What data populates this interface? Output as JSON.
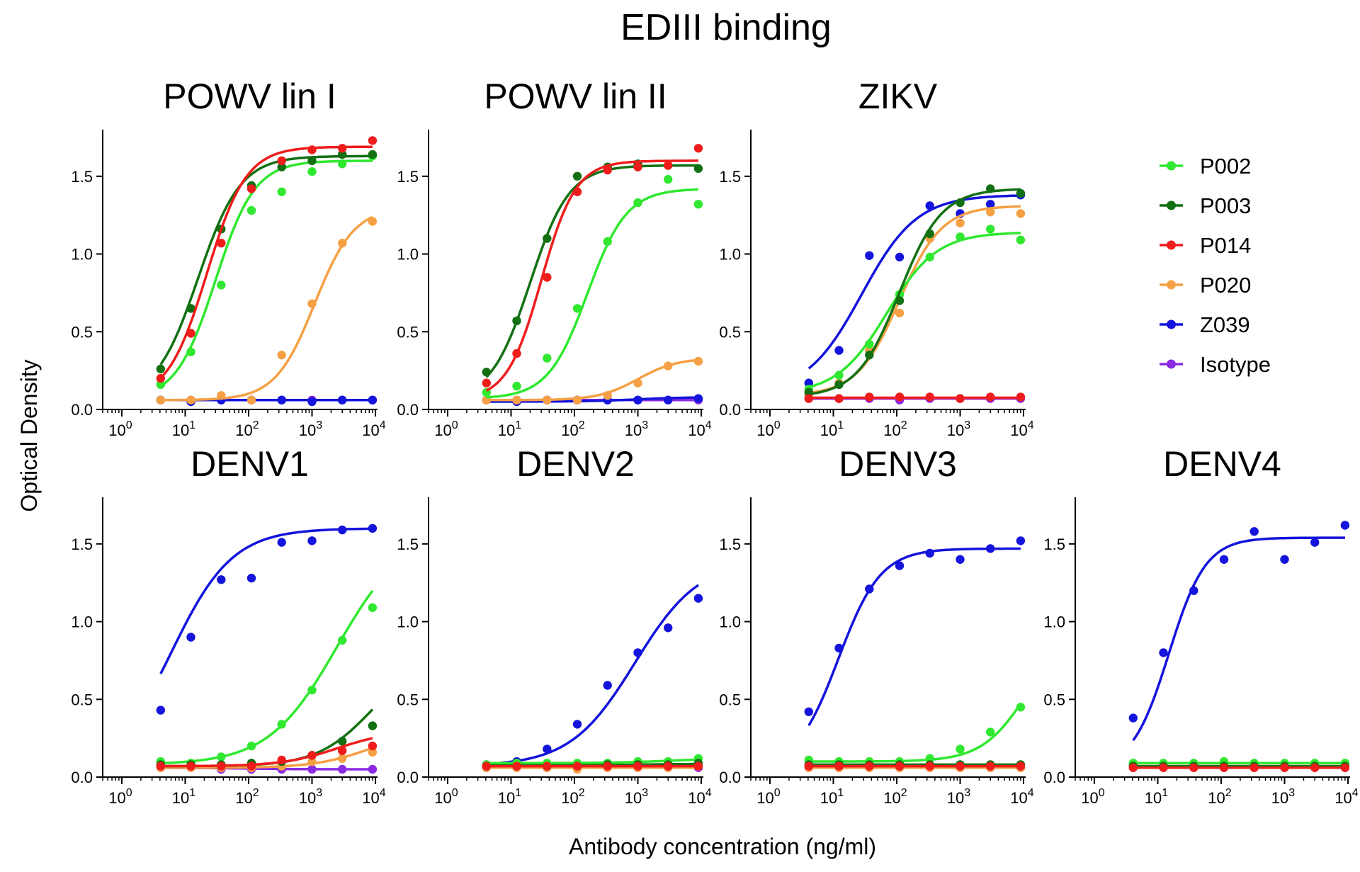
{
  "figure": {
    "title": "EDIII binding",
    "xlabel": "Antibody concentration (ng/ml)",
    "ylabel": "Optical Density"
  },
  "chart_data": {
    "type": "scatter",
    "title": "EDIII binding",
    "xlabel": "Antibody concentration (ng/ml)",
    "ylabel": "Optical Density",
    "x_scale": "log10",
    "xlim": [
      0.5,
      10000
    ],
    "ylim": [
      0,
      1.8
    ],
    "x_ticks": [
      {
        "base": "10",
        "exp": "0"
      },
      {
        "base": "10",
        "exp": "1"
      },
      {
        "base": "10",
        "exp": "2"
      },
      {
        "base": "10",
        "exp": "3"
      },
      {
        "base": "10",
        "exp": "4"
      }
    ],
    "y_ticks": [
      {
        "value": 0,
        "label": "0.0"
      },
      {
        "value": 0.5,
        "label": "0.5"
      },
      {
        "value": 1.0,
        "label": "1.0"
      },
      {
        "value": 1.5,
        "label": "1.5"
      }
    ],
    "x": [
      4.1,
      12.3,
      37,
      111,
      333,
      1000,
      3000,
      9000
    ],
    "series_info": [
      {
        "name": "P002",
        "color": "#2fe82f"
      },
      {
        "name": "P003",
        "color": "#127012"
      },
      {
        "name": "P014",
        "color": "#ef1c1c"
      },
      {
        "name": "P020",
        "color": "#f5a044"
      },
      {
        "name": "Z039",
        "color": "#1414dc"
      },
      {
        "name": "Isotype",
        "color": "#8a2be2"
      }
    ],
    "panels": [
      {
        "name": "POWV lin I",
        "series": [
          {
            "name": "Isotype",
            "values": [
              0.06,
              0.06,
              0.06,
              0.06,
              0.06,
              0.06,
              0.06,
              0.06
            ],
            "fit": {
              "bottom": 0.06,
              "top": 0.06,
              "ec50": 100,
              "hill": 1
            }
          },
          {
            "name": "Z039",
            "values": [
              0.06,
              0.05,
              0.06,
              0.06,
              0.06,
              0.05,
              0.06,
              0.06
            ],
            "fit": {
              "bottom": 0.06,
              "top": 0.06,
              "ec50": 100,
              "hill": 1
            }
          },
          {
            "name": "P020",
            "values": [
              0.06,
              0.06,
              0.09,
              0.06,
              0.35,
              0.68,
              1.07,
              1.21
            ],
            "fit": {
              "bottom": 0.06,
              "top": 1.3,
              "ec50": 1100,
              "hill": 1.4
            }
          },
          {
            "name": "P002",
            "values": [
              0.16,
              0.37,
              0.8,
              1.28,
              1.4,
              1.53,
              1.58,
              1.63
            ],
            "fit": {
              "bottom": 0.06,
              "top": 1.6,
              "ec50": 30,
              "hill": 1.4
            }
          },
          {
            "name": "P003",
            "values": [
              0.26,
              0.65,
              1.16,
              1.44,
              1.56,
              1.6,
              1.64,
              1.64
            ],
            "fit": {
              "bottom": 0.06,
              "top": 1.63,
              "ec50": 16,
              "hill": 1.3
            }
          },
          {
            "name": "P014",
            "values": [
              0.2,
              0.49,
              1.07,
              1.42,
              1.6,
              1.67,
              1.68,
              1.73
            ],
            "fit": {
              "bottom": 0.06,
              "top": 1.69,
              "ec50": 22,
              "hill": 1.4
            }
          }
        ]
      },
      {
        "name": "POWV lin II",
        "series": [
          {
            "name": "Isotype",
            "values": [
              0.06,
              0.06,
              0.06,
              0.06,
              0.06,
              0.06,
              0.06,
              0.06
            ],
            "fit": {
              "bottom": 0.06,
              "top": 0.06,
              "ec50": 100,
              "hill": 1
            }
          },
          {
            "name": "Z039",
            "values": [
              0.06,
              0.05,
              0.06,
              0.06,
              0.06,
              0.06,
              0.06,
              0.07
            ],
            "fit": {
              "bottom": 0.05,
              "top": 0.08,
              "ec50": 1000,
              "hill": 1
            }
          },
          {
            "name": "P020",
            "values": [
              0.06,
              0.06,
              0.06,
              0.06,
              0.09,
              0.17,
              0.28,
              0.31
            ],
            "fit": {
              "bottom": 0.06,
              "top": 0.33,
              "ec50": 1000,
              "hill": 1.4
            }
          },
          {
            "name": "P002",
            "values": [
              0.11,
              0.15,
              0.33,
              0.65,
              1.08,
              1.33,
              1.48,
              1.32
            ],
            "fit": {
              "bottom": 0.07,
              "top": 1.42,
              "ec50": 160,
              "hill": 1.4
            }
          },
          {
            "name": "P003",
            "values": [
              0.24,
              0.57,
              1.1,
              1.5,
              1.56,
              1.58,
              1.57,
              1.55
            ],
            "fit": {
              "bottom": 0.06,
              "top": 1.57,
              "ec50": 20,
              "hill": 1.4
            }
          },
          {
            "name": "P014",
            "values": [
              0.17,
              0.36,
              0.85,
              1.4,
              1.54,
              1.56,
              1.57,
              1.68
            ],
            "fit": {
              "bottom": 0.06,
              "top": 1.6,
              "ec50": 30,
              "hill": 1.6
            }
          }
        ]
      },
      {
        "name": "ZIKV",
        "series": [
          {
            "name": "Isotype",
            "values": [
              0.07,
              0.07,
              0.07,
              0.06,
              0.07,
              0.07,
              0.07,
              0.07
            ],
            "fit": {
              "bottom": 0.07,
              "top": 0.07,
              "ec50": 100,
              "hill": 1
            }
          },
          {
            "name": "Z039",
            "values": [
              0.17,
              0.38,
              0.99,
              0.98,
              1.31,
              1.26,
              1.32,
              1.38
            ],
            "fit": {
              "bottom": 0.1,
              "top": 1.38,
              "ec50": 28,
              "hill": 1
            }
          },
          {
            "name": "P020",
            "values": [
              0.09,
              0.17,
              0.38,
              0.62,
              1.1,
              1.2,
              1.27,
              1.26
            ],
            "fit": {
              "bottom": 0.09,
              "top": 1.31,
              "ec50": 110,
              "hill": 1.3
            }
          },
          {
            "name": "P002",
            "values": [
              0.13,
              0.22,
              0.42,
              0.74,
              0.98,
              1.11,
              1.16,
              1.09
            ],
            "fit": {
              "bottom": 0.1,
              "top": 1.14,
              "ec50": 70,
              "hill": 1.1
            }
          },
          {
            "name": "P003",
            "values": [
              0.11,
              0.16,
              0.35,
              0.7,
              1.13,
              1.33,
              1.42,
              1.39
            ],
            "fit": {
              "bottom": 0.08,
              "top": 1.42,
              "ec50": 110,
              "hill": 1.3
            }
          },
          {
            "name": "P014",
            "values": [
              0.07,
              0.07,
              0.08,
              0.08,
              0.08,
              0.07,
              0.08,
              0.08
            ],
            "fit": {
              "bottom": 0.075,
              "top": 0.075,
              "ec50": 100,
              "hill": 1
            }
          }
        ]
      },
      {
        "name": "DENV1",
        "series": [
          {
            "name": "Isotype",
            "values": [
              0.06,
              0.06,
              0.05,
              0.05,
              0.05,
              0.05,
              0.05,
              0.05
            ],
            "fit": {
              "bottom": 0.06,
              "top": 0.05,
              "ec50": 100,
              "hill": 1
            }
          },
          {
            "name": "Z039",
            "values": [
              0.43,
              0.9,
              1.27,
              1.28,
              1.51,
              1.52,
              1.59,
              1.6
            ],
            "fit": {
              "bottom": 0,
              "top": 1.6,
              "ec50": 6,
              "hill": 0.9
            }
          },
          {
            "name": "P020",
            "values": [
              0.06,
              0.06,
              0.06,
              0.06,
              0.07,
              0.1,
              0.12,
              0.16
            ],
            "fit": {
              "bottom": 0.06,
              "top": 0.3,
              "ec50": 8000,
              "hill": 1
            }
          },
          {
            "name": "P002",
            "values": [
              0.1,
              0.09,
              0.13,
              0.2,
              0.34,
              0.56,
              0.88,
              1.09
            ],
            "fit": {
              "bottom": 0.08,
              "top": 1.6,
              "ec50": 2500,
              "hill": 0.8
            }
          },
          {
            "name": "P003",
            "values": [
              0.08,
              0.08,
              0.08,
              0.09,
              0.1,
              0.14,
              0.23,
              0.33
            ],
            "fit": {
              "bottom": 0.07,
              "top": 0.8,
              "ec50": 9000,
              "hill": 1
            }
          },
          {
            "name": "P014",
            "values": [
              0.07,
              0.07,
              0.07,
              0.07,
              0.11,
              0.14,
              0.17,
              0.2
            ],
            "fit": {
              "bottom": 0.07,
              "top": 0.3,
              "ec50": 2500,
              "hill": 1
            }
          }
        ]
      },
      {
        "name": "DENV2",
        "series": [
          {
            "name": "Isotype",
            "values": [
              0.06,
              0.06,
              0.06,
              0.06,
              0.06,
              0.06,
              0.06,
              0.06
            ],
            "fit": {
              "bottom": 0.06,
              "top": 0.06,
              "ec50": 100,
              "hill": 1
            }
          },
          {
            "name": "Z039",
            "values": [
              0.08,
              0.1,
              0.18,
              0.34,
              0.59,
              0.8,
              0.96,
              1.15
            ],
            "fit": {
              "bottom": 0.07,
              "top": 1.4,
              "ec50": 900,
              "hill": 0.85
            }
          },
          {
            "name": "P020",
            "values": [
              0.06,
              0.06,
              0.06,
              0.05,
              0.06,
              0.06,
              0.06,
              0.07
            ],
            "fit": {
              "bottom": 0.06,
              "top": 0.06,
              "ec50": 100,
              "hill": 1
            }
          },
          {
            "name": "P002",
            "values": [
              0.08,
              0.09,
              0.09,
              0.09,
              0.09,
              0.1,
              0.1,
              0.12
            ],
            "fit": {
              "bottom": 0.09,
              "top": 0.12,
              "ec50": 3000,
              "hill": 1
            }
          },
          {
            "name": "P003",
            "values": [
              0.07,
              0.07,
              0.07,
              0.07,
              0.08,
              0.08,
              0.08,
              0.09
            ],
            "fit": {
              "bottom": 0.075,
              "top": 0.085,
              "ec50": 1000,
              "hill": 1
            }
          },
          {
            "name": "P014",
            "values": [
              0.07,
              0.07,
              0.07,
              0.07,
              0.07,
              0.07,
              0.07,
              0.07
            ],
            "fit": {
              "bottom": 0.07,
              "top": 0.07,
              "ec50": 100,
              "hill": 1
            }
          }
        ]
      },
      {
        "name": "DENV3",
        "series": [
          {
            "name": "Isotype",
            "values": [
              0.06,
              0.06,
              0.06,
              0.06,
              0.06,
              0.06,
              0.06,
              0.06
            ],
            "fit": {
              "bottom": 0.06,
              "top": 0.06,
              "ec50": 100,
              "hill": 1
            }
          },
          {
            "name": "Z039",
            "values": [
              0.42,
              0.83,
              1.21,
              1.36,
              1.44,
              1.4,
              1.47,
              1.52
            ],
            "fit": {
              "bottom": 0.05,
              "top": 1.47,
              "ec50": 12,
              "hill": 1.3
            }
          },
          {
            "name": "P020",
            "values": [
              0.06,
              0.06,
              0.06,
              0.06,
              0.06,
              0.06,
              0.06,
              0.06
            ],
            "fit": {
              "bottom": 0.06,
              "top": 0.06,
              "ec50": 100,
              "hill": 1
            }
          },
          {
            "name": "P002",
            "values": [
              0.11,
              0.1,
              0.1,
              0.1,
              0.12,
              0.18,
              0.29,
              0.45
            ],
            "fit": {
              "bottom": 0.1,
              "top": 1.0,
              "ec50": 12000,
              "hill": 1.2
            }
          },
          {
            "name": "P003",
            "values": [
              0.08,
              0.08,
              0.08,
              0.08,
              0.08,
              0.08,
              0.08,
              0.08
            ],
            "fit": {
              "bottom": 0.08,
              "top": 0.08,
              "ec50": 100,
              "hill": 1
            }
          },
          {
            "name": "P014",
            "values": [
              0.07,
              0.07,
              0.07,
              0.07,
              0.07,
              0.07,
              0.07,
              0.07
            ],
            "fit": {
              "bottom": 0.07,
              "top": 0.07,
              "ec50": 100,
              "hill": 1
            }
          }
        ]
      },
      {
        "name": "DENV4",
        "series": [
          {
            "name": "Isotype",
            "values": [
              0.07,
              0.07,
              0.07,
              0.07,
              0.07,
              0.07,
              0.07,
              0.07
            ],
            "fit": {
              "bottom": 0.07,
              "top": 0.07,
              "ec50": 100,
              "hill": 1
            }
          },
          {
            "name": "Z039",
            "values": [
              0.38,
              0.8,
              1.2,
              1.4,
              1.58,
              1.4,
              1.51,
              1.62
            ],
            "fit": {
              "bottom": 0.05,
              "top": 1.54,
              "ec50": 15,
              "hill": 1.5
            }
          },
          {
            "name": "P020",
            "values": [
              0.07,
              0.07,
              0.07,
              0.07,
              0.07,
              0.07,
              0.07,
              0.07
            ],
            "fit": {
              "bottom": 0.07,
              "top": 0.07,
              "ec50": 100,
              "hill": 1
            }
          },
          {
            "name": "P002",
            "values": [
              0.09,
              0.09,
              0.09,
              0.1,
              0.09,
              0.09,
              0.09,
              0.09
            ],
            "fit": {
              "bottom": 0.09,
              "top": 0.09,
              "ec50": 100,
              "hill": 1
            }
          },
          {
            "name": "P003",
            "values": [
              0.07,
              0.07,
              0.07,
              0.07,
              0.07,
              0.07,
              0.07,
              0.07
            ],
            "fit": {
              "bottom": 0.07,
              "top": 0.07,
              "ec50": 100,
              "hill": 1
            }
          },
          {
            "name": "P014",
            "values": [
              0.06,
              0.06,
              0.06,
              0.06,
              0.06,
              0.06,
              0.06,
              0.06
            ],
            "fit": {
              "bottom": 0.06,
              "top": 0.06,
              "ec50": 100,
              "hill": 1
            }
          }
        ]
      }
    ],
    "legend": {
      "placement": "right",
      "entries": [
        "P002",
        "P003",
        "P014",
        "P020",
        "Z039",
        "Isotype"
      ]
    }
  }
}
